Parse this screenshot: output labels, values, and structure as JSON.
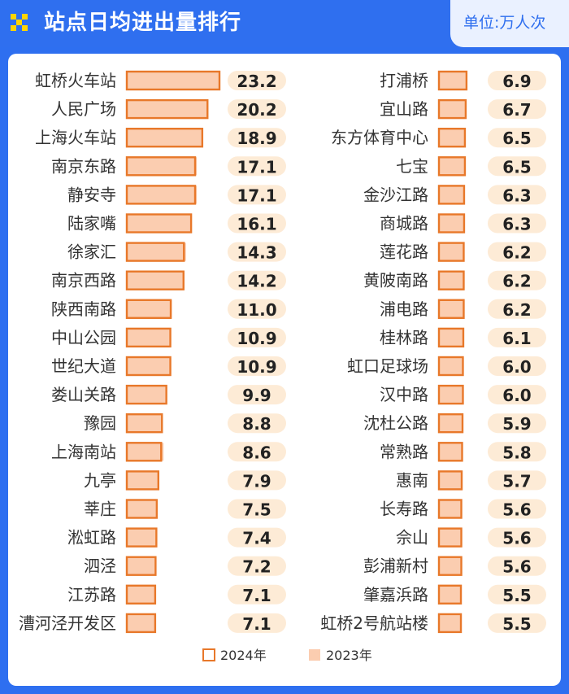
{
  "header": {
    "title": "站点日均进出量排行",
    "unit": "单位:万人次"
  },
  "colors": {
    "header_bg": "#2f6fef",
    "bar_2024_border": "#e8782a",
    "bar_2023_fill": "#fbcdb0",
    "value_pill": "#fdebd6"
  },
  "chart_data": {
    "type": "bar",
    "orientation": "horizontal",
    "series_names": [
      "2024年",
      "2023年"
    ],
    "columns": [
      [
        {
          "name": "虹桥火车站",
          "v2024": 23.2,
          "v2023": 23.2
        },
        {
          "name": "人民广场",
          "v2024": 20.2,
          "v2023": 20.2
        },
        {
          "name": "上海火车站",
          "v2024": 18.9,
          "v2023": 18.9
        },
        {
          "name": "南京东路",
          "v2024": 17.1,
          "v2023": 17.5
        },
        {
          "name": "静安寺",
          "v2024": 17.1,
          "v2023": 17.5
        },
        {
          "name": "陆家嘴",
          "v2024": 16.1,
          "v2023": 16.3
        },
        {
          "name": "徐家汇",
          "v2024": 14.3,
          "v2023": 14.8
        },
        {
          "name": "南京西路",
          "v2024": 14.2,
          "v2023": 14.2
        },
        {
          "name": "陕西南路",
          "v2024": 11.0,
          "v2023": 11.3
        },
        {
          "name": "中山公园",
          "v2024": 10.9,
          "v2023": 10.9
        },
        {
          "name": "世纪大道",
          "v2024": 10.9,
          "v2023": 10.9
        },
        {
          "name": "娄山关路",
          "v2024": 9.9,
          "v2023": 9.9
        },
        {
          "name": "豫园",
          "v2024": 8.8,
          "v2023": 8.8
        },
        {
          "name": "上海南站",
          "v2024": 8.6,
          "v2023": 9.2
        },
        {
          "name": "九亭",
          "v2024": 7.9,
          "v2023": 7.9
        },
        {
          "name": "莘庄",
          "v2024": 7.5,
          "v2023": 7.5
        },
        {
          "name": "淞虹路",
          "v2024": 7.4,
          "v2023": 7.4
        },
        {
          "name": "泗泾",
          "v2024": 7.2,
          "v2023": 7.2
        },
        {
          "name": "江苏路",
          "v2024": 7.1,
          "v2023": 7.1
        },
        {
          "name": "漕河泾开发区",
          "v2024": 7.1,
          "v2023": 7.1
        }
      ],
      [
        {
          "name": "打浦桥",
          "v2024": 6.9,
          "v2023": 6.9
        },
        {
          "name": "宜山路",
          "v2024": 6.7,
          "v2023": 6.7
        },
        {
          "name": "东方体育中心",
          "v2024": 6.5,
          "v2023": 6.5
        },
        {
          "name": "七宝",
          "v2024": 6.5,
          "v2023": 6.5
        },
        {
          "name": "金沙江路",
          "v2024": 6.3,
          "v2023": 6.3
        },
        {
          "name": "商城路",
          "v2024": 6.3,
          "v2023": 6.3
        },
        {
          "name": "莲花路",
          "v2024": 6.2,
          "v2023": 6.2
        },
        {
          "name": "黄陂南路",
          "v2024": 6.2,
          "v2023": 6.2
        },
        {
          "name": "浦电路",
          "v2024": 6.2,
          "v2023": 6.2
        },
        {
          "name": "桂林路",
          "v2024": 6.1,
          "v2023": 6.1
        },
        {
          "name": "虹口足球场",
          "v2024": 6.0,
          "v2023": 6.0
        },
        {
          "name": "汉中路",
          "v2024": 6.0,
          "v2023": 6.0
        },
        {
          "name": "沈杜公路",
          "v2024": 5.9,
          "v2023": 5.9
        },
        {
          "name": "常熟路",
          "v2024": 5.8,
          "v2023": 5.8
        },
        {
          "name": "惠南",
          "v2024": 5.7,
          "v2023": 5.7
        },
        {
          "name": "长寿路",
          "v2024": 5.6,
          "v2023": 5.6
        },
        {
          "name": "佘山",
          "v2024": 5.6,
          "v2023": 5.6
        },
        {
          "name": "彭浦新村",
          "v2024": 5.6,
          "v2023": 5.6
        },
        {
          "name": "肇嘉浜路",
          "v2024": 5.5,
          "v2023": 5.5
        },
        {
          "name": "虹桥2号航站楼",
          "v2024": 5.5,
          "v2023": 5.5
        }
      ]
    ],
    "xlim": [
      0,
      23.2
    ],
    "grid": false,
    "legend_position": "bottom-center"
  }
}
